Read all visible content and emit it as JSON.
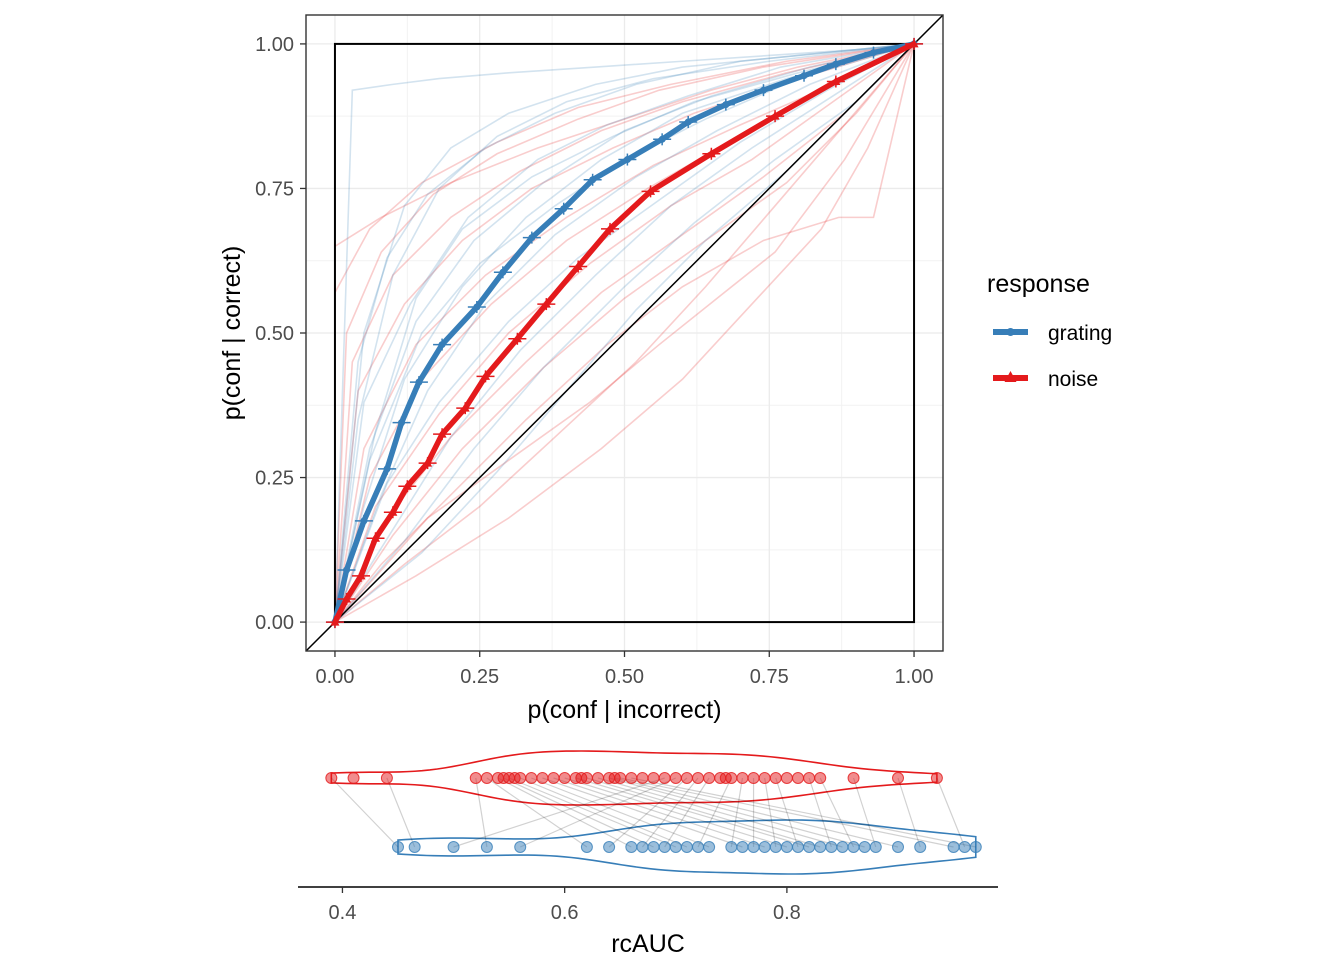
{
  "chart_data": [
    {
      "type": "line",
      "panel": "roc",
      "xlabel": "p(conf | incorrect)",
      "ylabel": "p(conf | correct)",
      "xlim": [
        -0.05,
        1.05
      ],
      "ylim": [
        -0.05,
        1.05
      ],
      "x_ticks": [
        0,
        0.25,
        0.5,
        0.75,
        1
      ],
      "x_tick_labels": [
        "0.00",
        "0.25",
        "0.50",
        "0.75",
        "1.00"
      ],
      "y_ticks": [
        0,
        0.25,
        0.5,
        0.75,
        1
      ],
      "y_tick_labels": [
        "0.00",
        "0.25",
        "0.50",
        "0.75",
        "1.00"
      ],
      "grid": true,
      "diagonal": true,
      "unit_square": true,
      "legend": {
        "title": "response",
        "placement": "right",
        "entries": [
          {
            "label": "grating",
            "color": "#377eb8",
            "marker": "circle"
          },
          {
            "label": "noise",
            "color": "#e41a1c",
            "marker": "triangle"
          }
        ]
      },
      "series": [
        {
          "name": "grating",
          "color": "#377eb8",
          "marker": "circle",
          "x": [
            0,
            0.02,
            0.05,
            0.09,
            0.115,
            0.145,
            0.185,
            0.245,
            0.29,
            0.34,
            0.395,
            0.445,
            0.505,
            0.565,
            0.61,
            0.675,
            0.74,
            0.81,
            0.865,
            0.93,
            1.0
          ],
          "y": [
            0,
            0.09,
            0.175,
            0.265,
            0.345,
            0.415,
            0.48,
            0.545,
            0.605,
            0.665,
            0.715,
            0.765,
            0.8,
            0.835,
            0.865,
            0.895,
            0.92,
            0.945,
            0.965,
            0.985,
            1.0
          ]
        },
        {
          "name": "noise",
          "color": "#e41a1c",
          "marker": "triangle",
          "x": [
            0,
            0.02,
            0.045,
            0.07,
            0.1,
            0.125,
            0.16,
            0.185,
            0.225,
            0.26,
            0.315,
            0.365,
            0.42,
            0.475,
            0.545,
            0.65,
            0.76,
            0.865,
            1.0
          ],
          "y": [
            0,
            0.04,
            0.08,
            0.145,
            0.19,
            0.235,
            0.275,
            0.325,
            0.37,
            0.425,
            0.49,
            0.55,
            0.615,
            0.68,
            0.745,
            0.81,
            0.875,
            0.935,
            1.0
          ]
        }
      ],
      "individual_curves": {
        "grating": [
          {
            "x": [
              0,
              0.03,
              0.1,
              0.18,
              0.3,
              0.45,
              0.6,
              0.75,
              0.9,
              1.0
            ],
            "y": [
              0,
              0.92,
              0.93,
              0.94,
              0.95,
              0.96,
              0.97,
              0.98,
              0.99,
              1.0
            ]
          },
          {
            "x": [
              0,
              0.05,
              0.12,
              0.2,
              0.3,
              0.45,
              0.6,
              0.8,
              1.0
            ],
            "y": [
              0,
              0.5,
              0.72,
              0.82,
              0.88,
              0.93,
              0.96,
              0.98,
              1.0
            ]
          },
          {
            "x": [
              0,
              0.04,
              0.1,
              0.18,
              0.28,
              0.4,
              0.55,
              0.75,
              1.0
            ],
            "y": [
              0,
              0.35,
              0.6,
              0.75,
              0.84,
              0.9,
              0.94,
              0.97,
              1.0
            ]
          },
          {
            "x": [
              0,
              0.06,
              0.14,
              0.24,
              0.36,
              0.5,
              0.65,
              0.82,
              1.0
            ],
            "y": [
              0,
              0.3,
              0.52,
              0.66,
              0.76,
              0.85,
              0.91,
              0.96,
              1.0
            ]
          },
          {
            "x": [
              0,
              0.05,
              0.12,
              0.22,
              0.33,
              0.46,
              0.6,
              0.78,
              1.0
            ],
            "y": [
              0,
              0.2,
              0.42,
              0.58,
              0.7,
              0.8,
              0.88,
              0.94,
              1.0
            ]
          },
          {
            "x": [
              0,
              0.08,
              0.16,
              0.26,
              0.38,
              0.52,
              0.66,
              0.82,
              1.0
            ],
            "y": [
              0,
              0.22,
              0.4,
              0.55,
              0.67,
              0.77,
              0.85,
              0.93,
              1.0
            ]
          },
          {
            "x": [
              0,
              0.1,
              0.2,
              0.32,
              0.45,
              0.58,
              0.72,
              0.86,
              1.0
            ],
            "y": [
              0,
              0.16,
              0.32,
              0.47,
              0.6,
              0.72,
              0.82,
              0.91,
              1.0
            ]
          },
          {
            "x": [
              0,
              0.06,
              0.15,
              0.25,
              0.38,
              0.5,
              0.64,
              0.8,
              1.0
            ],
            "y": [
              0,
              0.28,
              0.5,
              0.62,
              0.72,
              0.8,
              0.87,
              0.94,
              1.0
            ]
          },
          {
            "x": [
              0,
              0.12,
              0.24,
              0.36,
              0.5,
              0.62,
              0.76,
              0.9,
              1.0
            ],
            "y": [
              0,
              0.14,
              0.3,
              0.44,
              0.58,
              0.69,
              0.8,
              0.9,
              1.0
            ]
          },
          {
            "x": [
              0,
              0.04,
              0.09,
              0.16,
              0.26,
              0.38,
              0.52,
              0.7,
              1.0
            ],
            "y": [
              0,
              0.45,
              0.63,
              0.74,
              0.82,
              0.88,
              0.93,
              0.97,
              1.0
            ]
          },
          {
            "x": [
              0,
              0.09,
              0.18,
              0.3,
              0.42,
              0.56,
              0.7,
              0.85,
              1.0
            ],
            "y": [
              0,
              0.24,
              0.38,
              0.52,
              0.63,
              0.73,
              0.83,
              0.92,
              1.0
            ]
          },
          {
            "x": [
              0,
              0.07,
              0.14,
              0.22,
              0.34,
              0.48,
              0.62,
              0.8,
              1.0
            ],
            "y": [
              0,
              0.33,
              0.56,
              0.68,
              0.77,
              0.84,
              0.9,
              0.95,
              1.0
            ]
          },
          {
            "x": [
              0,
              0.15,
              0.28,
              0.4,
              0.52,
              0.64,
              0.78,
              0.9,
              1.0
            ],
            "y": [
              0,
              0.12,
              0.26,
              0.4,
              0.54,
              0.66,
              0.78,
              0.9,
              1.0
            ]
          },
          {
            "x": [
              0,
              0.05,
              0.13,
              0.23,
              0.35,
              0.47,
              0.61,
              0.77,
              1.0
            ],
            "y": [
              0,
              0.38,
              0.55,
              0.7,
              0.8,
              0.86,
              0.91,
              0.96,
              1.0
            ]
          }
        ],
        "noise": [
          {
            "x": [
              0,
              0.0,
              0.08,
              0.2,
              0.35,
              0.5,
              0.65,
              0.8,
              1.0
            ],
            "y": [
              0,
              0.65,
              0.7,
              0.76,
              0.82,
              0.87,
              0.92,
              0.96,
              1.0
            ]
          },
          {
            "x": [
              0,
              0.0,
              0.06,
              0.15,
              0.28,
              0.42,
              0.58,
              0.78,
              1.0
            ],
            "y": [
              0,
              0.57,
              0.68,
              0.76,
              0.83,
              0.89,
              0.93,
              0.97,
              1.0
            ]
          },
          {
            "x": [
              0,
              0.08,
              0.2,
              0.33,
              0.47,
              0.6,
              0.74,
              0.87,
              0.93,
              1.0
            ],
            "y": [
              0,
              0.1,
              0.22,
              0.35,
              0.48,
              0.58,
              0.66,
              0.7,
              0.7,
              1.0
            ]
          },
          {
            "x": [
              0,
              0.05,
              0.14,
              0.26,
              0.4,
              0.55,
              0.7,
              0.86,
              1.0
            ],
            "y": [
              0,
              0.3,
              0.48,
              0.6,
              0.7,
              0.79,
              0.86,
              0.93,
              1.0
            ]
          },
          {
            "x": [
              0,
              0.12,
              0.25,
              0.38,
              0.52,
              0.64,
              0.76,
              0.88,
              1.0
            ],
            "y": [
              0,
              0.1,
              0.2,
              0.32,
              0.45,
              0.58,
              0.72,
              0.86,
              1.0
            ]
          },
          {
            "x": [
              0,
              0.07,
              0.18,
              0.3,
              0.44,
              0.58,
              0.72,
              0.86,
              1.0
            ],
            "y": [
              0,
              0.2,
              0.36,
              0.5,
              0.62,
              0.72,
              0.8,
              0.9,
              1.0
            ]
          },
          {
            "x": [
              0,
              0.1,
              0.22,
              0.36,
              0.5,
              0.64,
              0.78,
              0.9,
              1.0
            ],
            "y": [
              0,
              0.15,
              0.3,
              0.44,
              0.56,
              0.66,
              0.76,
              0.88,
              1.0
            ]
          },
          {
            "x": [
              0,
              0.04,
              0.12,
              0.22,
              0.34,
              0.48,
              0.62,
              0.8,
              1.0
            ],
            "y": [
              0,
              0.4,
              0.55,
              0.66,
              0.75,
              0.82,
              0.88,
              0.94,
              1.0
            ]
          },
          {
            "x": [
              0,
              0.14,
              0.3,
              0.46,
              0.6,
              0.72,
              0.84,
              0.92,
              1.0
            ],
            "y": [
              0,
              0.08,
              0.18,
              0.3,
              0.42,
              0.55,
              0.68,
              0.82,
              1.0
            ]
          },
          {
            "x": [
              0,
              0.06,
              0.15,
              0.27,
              0.4,
              0.54,
              0.68,
              0.84,
              1.0
            ],
            "y": [
              0,
              0.25,
              0.42,
              0.55,
              0.66,
              0.75,
              0.83,
              0.92,
              1.0
            ]
          },
          {
            "x": [
              0,
              0.03,
              0.1,
              0.2,
              0.32,
              0.46,
              0.6,
              0.78,
              1.0
            ],
            "y": [
              0,
              0.45,
              0.6,
              0.7,
              0.78,
              0.85,
              0.9,
              0.95,
              1.0
            ]
          },
          {
            "x": [
              0,
              0.09,
              0.2,
              0.33,
              0.46,
              0.6,
              0.74,
              0.88,
              1.0
            ],
            "y": [
              0,
              0.18,
              0.32,
              0.45,
              0.57,
              0.67,
              0.77,
              0.88,
              1.0
            ]
          },
          {
            "x": [
              0,
              0.16,
              0.3,
              0.44,
              0.56,
              0.66,
              0.76,
              0.88,
              1.0
            ],
            "y": [
              0,
              0.18,
              0.28,
              0.38,
              0.48,
              0.56,
              0.64,
              0.8,
              1.0
            ]
          },
          {
            "x": [
              0,
              0.02,
              0.08,
              0.17,
              0.28,
              0.42,
              0.56,
              0.74,
              1.0
            ],
            "y": [
              0,
              0.5,
              0.64,
              0.74,
              0.81,
              0.87,
              0.92,
              0.96,
              1.0
            ]
          }
        ]
      }
    },
    {
      "type": "scatter",
      "panel": "rcauc",
      "xlabel": "rcAUC",
      "xlim": [
        0.36,
        0.99
      ],
      "x_ticks": [
        0.4,
        0.6,
        0.8
      ],
      "x_tick_labels": [
        "0.4",
        "0.6",
        "0.8"
      ],
      "grid": false,
      "series": [
        {
          "name": "noise",
          "color": "#e41a1c",
          "values": [
            0.39,
            0.41,
            0.44,
            0.52,
            0.53,
            0.54,
            0.545,
            0.55,
            0.555,
            0.56,
            0.57,
            0.58,
            0.59,
            0.6,
            0.61,
            0.615,
            0.62,
            0.63,
            0.64,
            0.645,
            0.65,
            0.66,
            0.67,
            0.68,
            0.69,
            0.7,
            0.71,
            0.72,
            0.73,
            0.74,
            0.745,
            0.75,
            0.76,
            0.77,
            0.78,
            0.79,
            0.8,
            0.81,
            0.82,
            0.83,
            0.86,
            0.9,
            0.935
          ]
        },
        {
          "name": "grating",
          "color": "#377eb8",
          "values": [
            0.45,
            0.465,
            0.5,
            0.53,
            0.56,
            0.62,
            0.64,
            0.66,
            0.67,
            0.68,
            0.69,
            0.7,
            0.71,
            0.72,
            0.73,
            0.75,
            0.76,
            0.77,
            0.78,
            0.79,
            0.8,
            0.81,
            0.82,
            0.83,
            0.84,
            0.85,
            0.86,
            0.87,
            0.88,
            0.9,
            0.92,
            0.95,
            0.96,
            0.97
          ]
        }
      ]
    }
  ]
}
